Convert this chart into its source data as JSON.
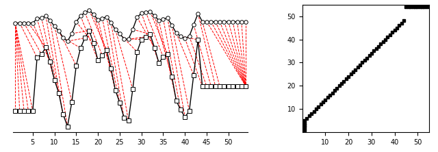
{
  "n_ts1": 54,
  "n_ts2": 54,
  "line_color": "#000000",
  "dashed_color": "#FF0000",
  "marker_circle": "o",
  "marker_square": "s",
  "markersize": 4,
  "dashed_linewidth": 0.7,
  "signal_linewidth": 1.0,
  "background_color": "#ffffff",
  "right_xticks": [
    10,
    20,
    30,
    40,
    50
  ],
  "right_yticks": [
    10,
    20,
    30,
    40,
    50
  ]
}
